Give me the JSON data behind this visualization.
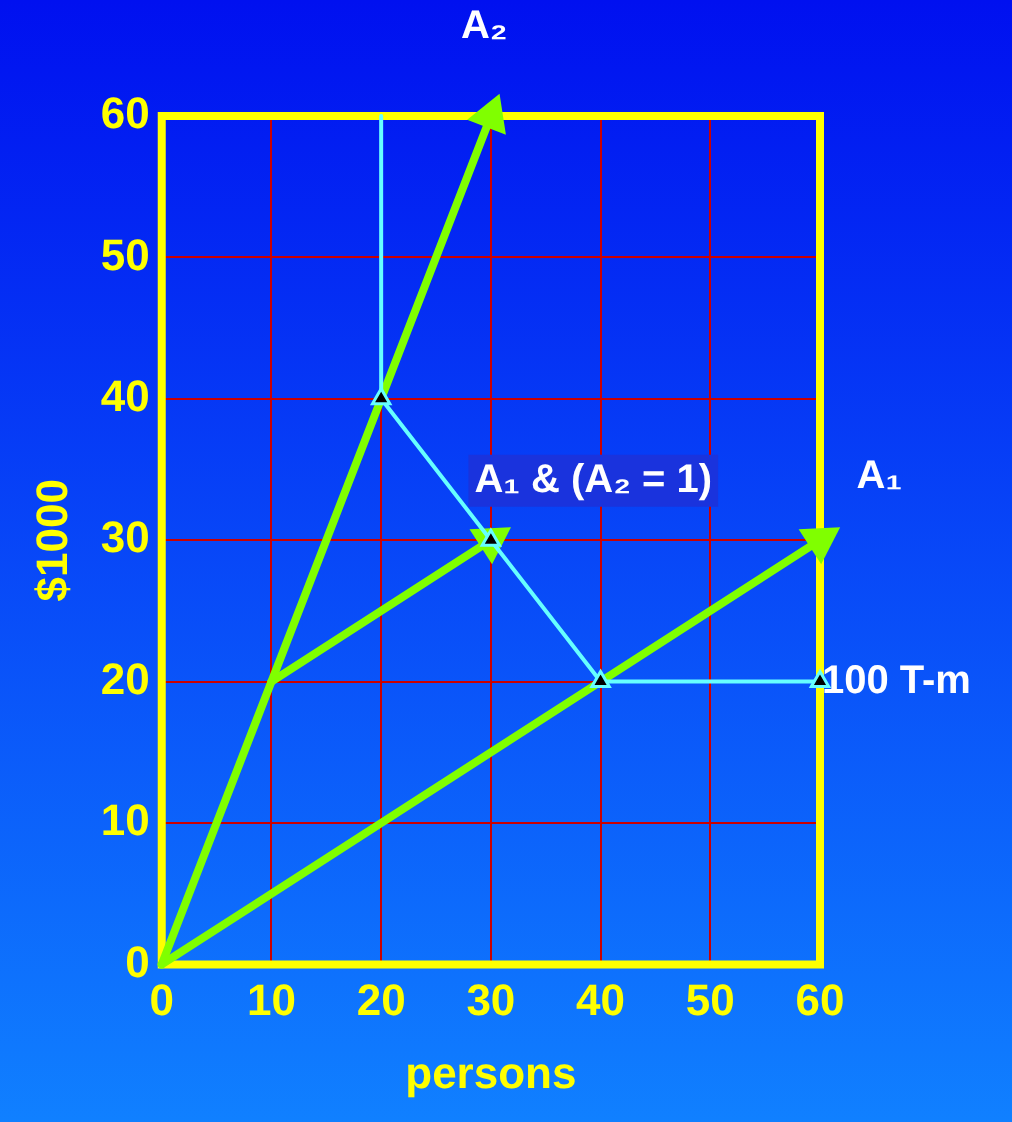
{
  "chart_data": {
    "type": "line",
    "xlabel": "persons",
    "ylabel": "$1000",
    "xlim": [
      0,
      60
    ],
    "ylim": [
      0,
      60
    ],
    "xticks": [
      0,
      10,
      20,
      30,
      40,
      50,
      60
    ],
    "yticks": [
      0,
      10,
      20,
      30,
      40,
      50,
      60
    ],
    "grid": true,
    "legend": false,
    "marker": "triangle",
    "series": [
      {
        "color": "#66ffff",
        "x": [
          20,
          20,
          30,
          40,
          60
        ],
        "values": [
          60,
          40,
          30,
          20,
          20
        ]
      },
      {
        "color": "#80ff00",
        "x": [
          0,
          30
        ],
        "values": [
          0,
          60
        ]
      },
      {
        "color": "#80ff00",
        "x": [
          0,
          60
        ],
        "values": [
          0,
          30
        ]
      },
      {
        "color": "#80ff00",
        "x": [
          10,
          30
        ],
        "values": [
          20,
          30
        ]
      }
    ],
    "annotations": [
      "A₂",
      "A₁",
      "A₁ & (A₂ = 1)",
      "100 T-m"
    ]
  }
}
